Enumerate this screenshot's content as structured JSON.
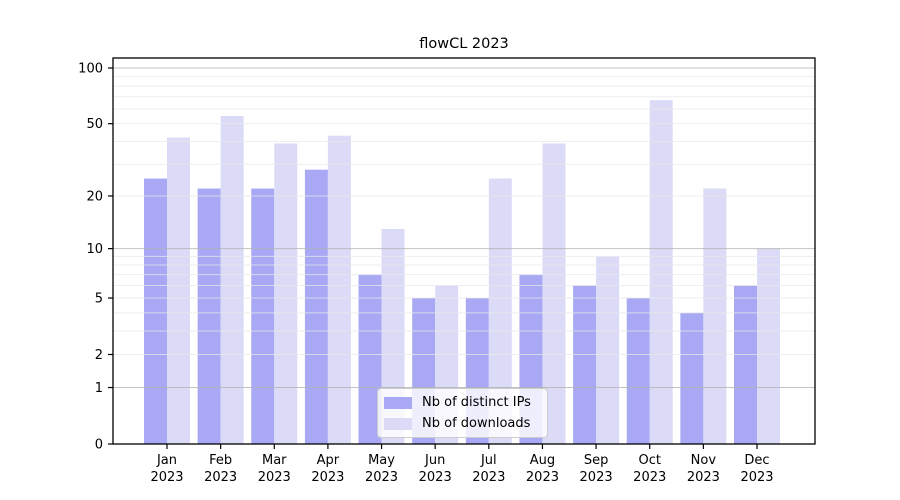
{
  "title": "flowCL 2023",
  "legend": {
    "items": [
      {
        "key": "ips",
        "label": "Nb of distinct IPs",
        "color": "#a8a8f5"
      },
      {
        "key": "downloads",
        "label": "Nb of downloads",
        "color": "#dbdbf7"
      }
    ]
  },
  "chart_data": {
    "type": "bar",
    "title": "flowCL 2023",
    "categories": [
      "Jan",
      "Feb",
      "Mar",
      "Apr",
      "May",
      "Jun",
      "Jul",
      "Aug",
      "Sep",
      "Oct",
      "Nov",
      "Dec"
    ],
    "category_year": "2023",
    "series": [
      {
        "name": "Nb of distinct IPs",
        "key": "ips",
        "color": "#a8a8f5",
        "values": [
          25,
          22,
          22,
          28,
          7,
          5,
          5,
          7,
          6,
          5,
          4,
          6
        ]
      },
      {
        "name": "Nb of downloads",
        "key": "downloads",
        "color": "#dbdbf7",
        "values": [
          42,
          55,
          39,
          43,
          13,
          6,
          25,
          39,
          9,
          67,
          22,
          10
        ]
      }
    ],
    "xlabel": "",
    "ylabel": "",
    "yscale": "log10(value+1)",
    "ylim": [
      0,
      113
    ],
    "ytick_labels": [
      0,
      1,
      2,
      5,
      10,
      20,
      50,
      100
    ],
    "major_gridlines": [
      1,
      10,
      100
    ],
    "minor_gridlines": [
      2,
      3,
      4,
      5,
      6,
      7,
      8,
      9,
      20,
      30,
      40,
      50,
      60,
      70,
      80,
      90
    ],
    "grid_color_major": "#b3b3b3",
    "grid_color_minor": "#e9e9e9",
    "legend_position": "bottom-center"
  }
}
